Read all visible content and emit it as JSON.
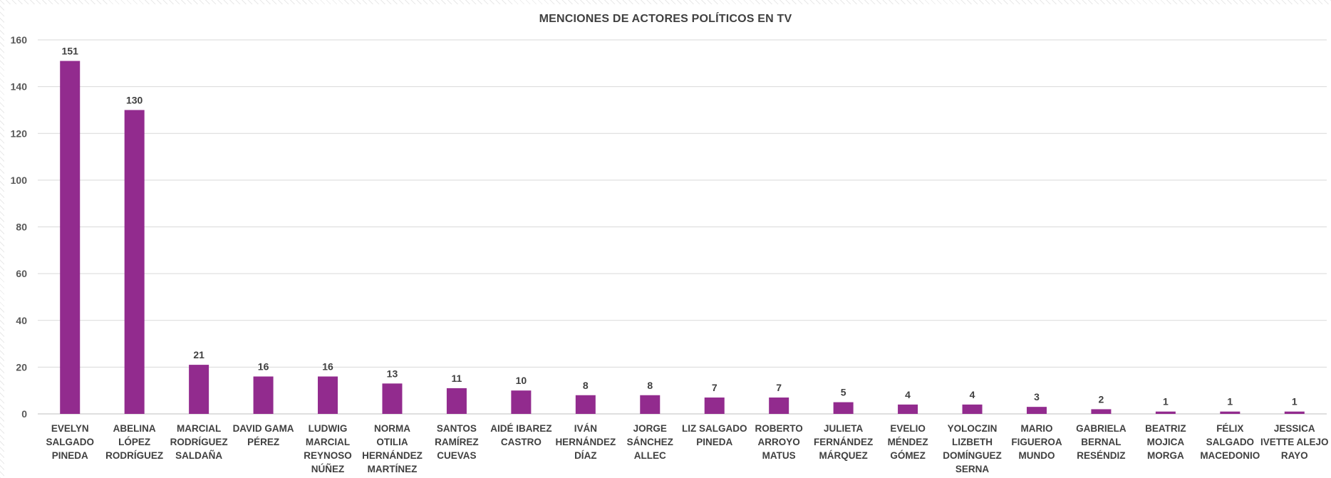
{
  "chart_data": {
    "type": "bar",
    "title": "MENCIONES DE ACTORES POLÍTICOS EN TV",
    "xlabel": "",
    "ylabel": "",
    "ylim": [
      0,
      160
    ],
    "yticks": [
      0,
      20,
      40,
      60,
      80,
      100,
      120,
      140,
      160
    ],
    "grid": true,
    "legend": "none",
    "bar_color": "#922B8E",
    "categories": [
      [
        "EVELYN",
        "SALGADO",
        "PINEDA"
      ],
      [
        "ABELINA",
        "LÓPEZ",
        "RODRÍGUEZ"
      ],
      [
        "MARCIAL",
        "RODRÍGUEZ",
        "SALDAÑA"
      ],
      [
        "DAVID GAMA",
        "PÉREZ"
      ],
      [
        "LUDWIG",
        "MARCIAL",
        "REYNOSO",
        "NÚÑEZ"
      ],
      [
        "NORMA",
        "OTILIA",
        "HERNÁNDEZ",
        "MARTÍNEZ"
      ],
      [
        "SANTOS",
        "RAMÍREZ",
        "CUEVAS"
      ],
      [
        "AIDÉ IBAREZ",
        "CASTRO"
      ],
      [
        "IVÁN",
        "HERNÁNDEZ",
        "DÍAZ"
      ],
      [
        "JORGE",
        "SÁNCHEZ",
        "ALLEC"
      ],
      [
        "LIZ SALGADO",
        "PINEDA"
      ],
      [
        "ROBERTO",
        "ARROYO",
        "MATUS"
      ],
      [
        "JULIETA",
        "FERNÁNDEZ",
        "MÁRQUEZ"
      ],
      [
        "EVELIO",
        "MÉNDEZ",
        "GÓMEZ"
      ],
      [
        "YOLOCZIN",
        "LIZBETH",
        "DOMÍNGUEZ",
        "SERNA"
      ],
      [
        "MARIO",
        "FIGUEROA",
        "MUNDO"
      ],
      [
        "GABRIELA",
        "BERNAL",
        "RESÉNDIZ"
      ],
      [
        "BEATRIZ",
        "MOJICA",
        "MORGA"
      ],
      [
        "FÉLIX",
        "SALGADO",
        "MACEDONIO"
      ],
      [
        "JESSICA",
        "IVETTE ALEJO",
        "RAYO"
      ]
    ],
    "values": [
      151,
      130,
      21,
      16,
      16,
      13,
      11,
      10,
      8,
      8,
      7,
      7,
      5,
      4,
      4,
      3,
      2,
      1,
      1,
      1
    ]
  }
}
